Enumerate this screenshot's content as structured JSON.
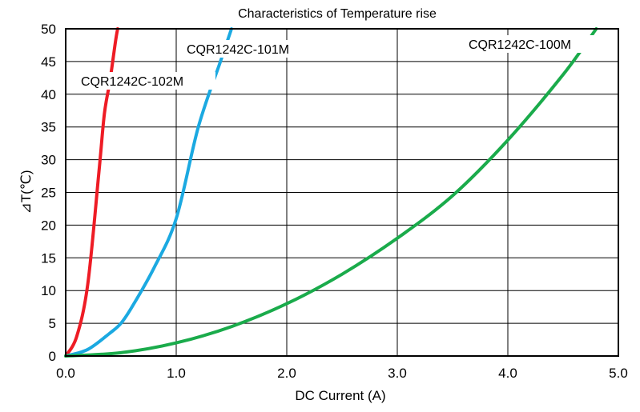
{
  "chart_data": {
    "type": "line",
    "title": "Characteristics of Temperature rise",
    "xlabel": "DC Current (A)",
    "ylabel": "⊿T(℃)",
    "xlim": [
      0,
      5
    ],
    "ylim": [
      0,
      50
    ],
    "x_ticks": [
      "0.0",
      "1.0",
      "2.0",
      "3.0",
      "4.0",
      "5.0"
    ],
    "y_ticks": [
      "0",
      "5",
      "10",
      "15",
      "20",
      "25",
      "30",
      "35",
      "40",
      "45",
      "50"
    ],
    "grid": true,
    "legend": "none",
    "series": [
      {
        "name": "CQR1242C-102M",
        "color": "#ee1c25",
        "x": [
          0,
          0.1,
          0.2,
          0.3,
          0.35,
          0.4,
          0.45,
          0.47
        ],
        "y": [
          0,
          3,
          11,
          28,
          37,
          42,
          48,
          50
        ]
      },
      {
        "name": "CQR1242C-101M",
        "color": "#1ba9e1",
        "x": [
          0,
          0.2,
          0.4,
          0.5,
          0.6,
          0.8,
          1.0,
          1.2,
          1.4,
          1.5
        ],
        "y": [
          0,
          1,
          3.5,
          5,
          7.5,
          13.5,
          21,
          35,
          45,
          50
        ]
      },
      {
        "name": "CQR1242C-100M",
        "color": "#1aab4b",
        "x": [
          0,
          0.5,
          1.0,
          1.5,
          2.0,
          2.5,
          3.0,
          3.5,
          4.0,
          4.5,
          4.8
        ],
        "y": [
          0,
          0.5,
          2,
          4.5,
          8,
          12.5,
          18,
          24.5,
          33,
          43,
          50
        ]
      }
    ]
  }
}
